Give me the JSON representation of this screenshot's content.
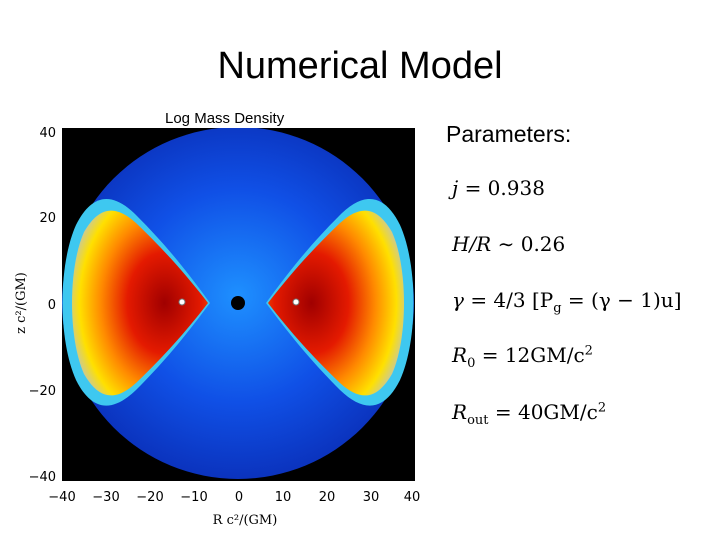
{
  "slide": {
    "title": "Numerical Model"
  },
  "figure": {
    "caption": "Log Mass Density",
    "xlabel": "R c²/(GM)",
    "ylabel": "z c²/(GM)",
    "xticks": [
      "−40",
      "−30",
      "−20",
      "−10",
      "0",
      "10",
      "20",
      "30",
      "40"
    ],
    "yticks": [
      "40",
      "20",
      "0",
      "−20",
      "−40"
    ],
    "colors": {
      "background": "#000000",
      "atmosphere": "#0a3fd6",
      "torus_core": "#b00000",
      "torus_edge": "#3ec8f0"
    }
  },
  "parameters": {
    "heading": "Parameters:",
    "j": {
      "symbol": "j",
      "value": "= 0.938"
    },
    "h_over_r": {
      "symbol": "H/R",
      "value": "∼ 0.26"
    },
    "gamma": {
      "symbol": "γ",
      "value": "= 4/3",
      "eos_open": "[P",
      "eos_sub": "g",
      "eos_rest": " = (γ − 1)u]"
    },
    "r0": {
      "symbol": "R",
      "sub": "0",
      "value": "= 12GM/c",
      "sup": "2"
    },
    "rout": {
      "symbol": "R",
      "sub": "out",
      "value": "= 40GM/c",
      "sup": "2"
    }
  }
}
